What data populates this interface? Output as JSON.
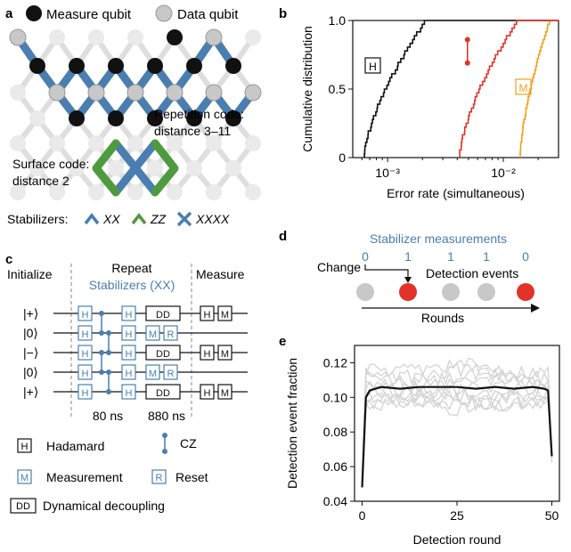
{
  "colors": {
    "blue": "#4a7eb0",
    "green": "#4e9a3e",
    "red": "#e2322a",
    "orange": "#f0a020",
    "black": "#111111",
    "gray_qubit": "#c8c8c8",
    "light_lattice": "#dedede"
  },
  "panel_a": {
    "label": "a",
    "legend_measure": "Measure qubit",
    "legend_data": "Data qubit",
    "repetition_code_line1": "Repetition code:",
    "repetition_code_line2": "distance 3–11",
    "surface_code_line1": "Surface code:",
    "surface_code_line2": "distance 2",
    "stabilizers_title": "Stabilizers:",
    "stab_xx": "XX",
    "stab_zz": "ZZ",
    "stab_xxxx": "XXXX"
  },
  "panel_b": {
    "label": "b",
    "box_h": "H",
    "box_m": "M"
  },
  "panel_c": {
    "label": "c",
    "initialize": "Initialize",
    "repeat": "Repeat",
    "stabilizers": "Stabilizers (XX)",
    "measure": "Measure",
    "states": [
      "|+⟩",
      "|0⟩",
      "|−⟩",
      "|0⟩",
      "|+⟩"
    ],
    "gate_h": "H",
    "gate_m": "M",
    "gate_r": "R",
    "gate_dd": "DD",
    "time_80": "80 ns",
    "time_880": "880 ns",
    "legend_hadamard": "Hadamard",
    "legend_cz": "CZ",
    "legend_measurement": "Measurement",
    "legend_reset": "Reset",
    "legend_dd": "Dynamical decoupling"
  },
  "panel_d": {
    "label": "d",
    "title": "Stabilizer measurements",
    "values": [
      "0",
      "1",
      "1",
      "1",
      "0"
    ],
    "change": "Change",
    "detection_events": "Detection events",
    "rounds": "Rounds",
    "detection_flags": [
      false,
      true,
      false,
      false,
      true
    ]
  },
  "panel_e": {
    "label": "e"
  },
  "chart_data": [
    {
      "type": "line",
      "panel": "b",
      "xlabel": "Error rate (simultaneous)",
      "ylabel": "Cumulative distribution",
      "xscale": "log",
      "xlim": [
        0.0005,
        0.03
      ],
      "ylim": [
        0,
        1
      ],
      "xticks": [
        0.001,
        0.01
      ],
      "xtick_labels": [
        "10⁻³",
        "10⁻²"
      ],
      "yticks": [
        0,
        0.5,
        1
      ],
      "ytick_labels": [
        "0",
        "0.5",
        "1.0"
      ],
      "series": [
        {
          "name": "H",
          "color": "#111111",
          "min": 0.00063,
          "max": 0.0021,
          "steps": 36
        },
        {
          "name": "M",
          "color": "#f0a020",
          "min": 0.014,
          "max": 0.025,
          "steps": 36
        },
        {
          "name": "",
          "color": "#e2322a",
          "min": 0.0042,
          "max": 0.013,
          "steps": 36
        }
      ],
      "readout_marker": {
        "x": 0.0049,
        "y_low": 0.69,
        "y_high": 0.86
      }
    },
    {
      "type": "line",
      "panel": "e",
      "xlabel": "Detection round",
      "ylabel": "Detection event fraction",
      "xlim": [
        -2,
        52
      ],
      "ylim": [
        0.04,
        0.13
      ],
      "xticks": [
        0,
        25,
        50
      ],
      "xtick_labels": [
        "0",
        "25",
        "50"
      ],
      "yticks": [
        0.04,
        0.06,
        0.08,
        0.1,
        0.12
      ],
      "ytick_labels": [
        "0.04",
        "0.06",
        "0.08",
        "0.10",
        "0.12"
      ],
      "average": {
        "x": [
          0,
          1,
          2,
          5,
          10,
          15,
          20,
          25,
          30,
          35,
          40,
          45,
          48,
          49,
          50
        ],
        "y": [
          0.048,
          0.1,
          0.104,
          0.106,
          0.105,
          0.106,
          0.106,
          0.106,
          0.105,
          0.106,
          0.105,
          0.106,
          0.105,
          0.104,
          0.066
        ]
      },
      "individual_levels": [
        0.095,
        0.099,
        0.102,
        0.105,
        0.108,
        0.111,
        0.114,
        0.117,
        0.101,
        0.097
      ]
    }
  ]
}
